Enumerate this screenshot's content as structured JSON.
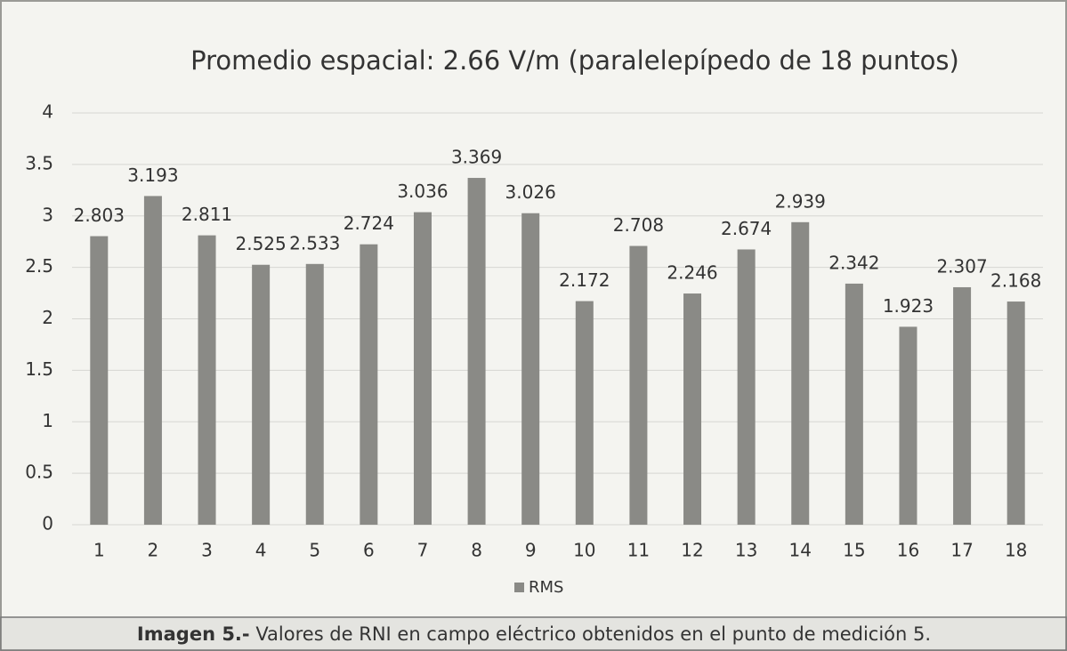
{
  "chart_data": {
    "type": "bar",
    "title": "Promedio espacial: 2.66 V/m (paralelepípedo de 18 puntos)",
    "categories": [
      "1",
      "2",
      "3",
      "4",
      "5",
      "6",
      "7",
      "8",
      "9",
      "10",
      "11",
      "12",
      "13",
      "14",
      "15",
      "16",
      "17",
      "18"
    ],
    "series": [
      {
        "name": "RMS",
        "color": "#8a8a86",
        "values": [
          2.803,
          3.193,
          2.811,
          2.525,
          2.533,
          2.724,
          3.036,
          3.369,
          3.026,
          2.172,
          2.708,
          2.246,
          2.674,
          2.939,
          2.342,
          1.923,
          2.307,
          2.168
        ]
      }
    ],
    "ylim": [
      0,
      4
    ],
    "yticks": [
      0,
      0.5,
      1,
      1.5,
      2,
      2.5,
      3,
      3.5,
      4
    ],
    "grid": true,
    "legend": "bottom"
  },
  "caption": {
    "label": "Imagen 5.-",
    "text": " Valores de RNI en campo eléctrico obtenidos en el punto de medición 5."
  }
}
